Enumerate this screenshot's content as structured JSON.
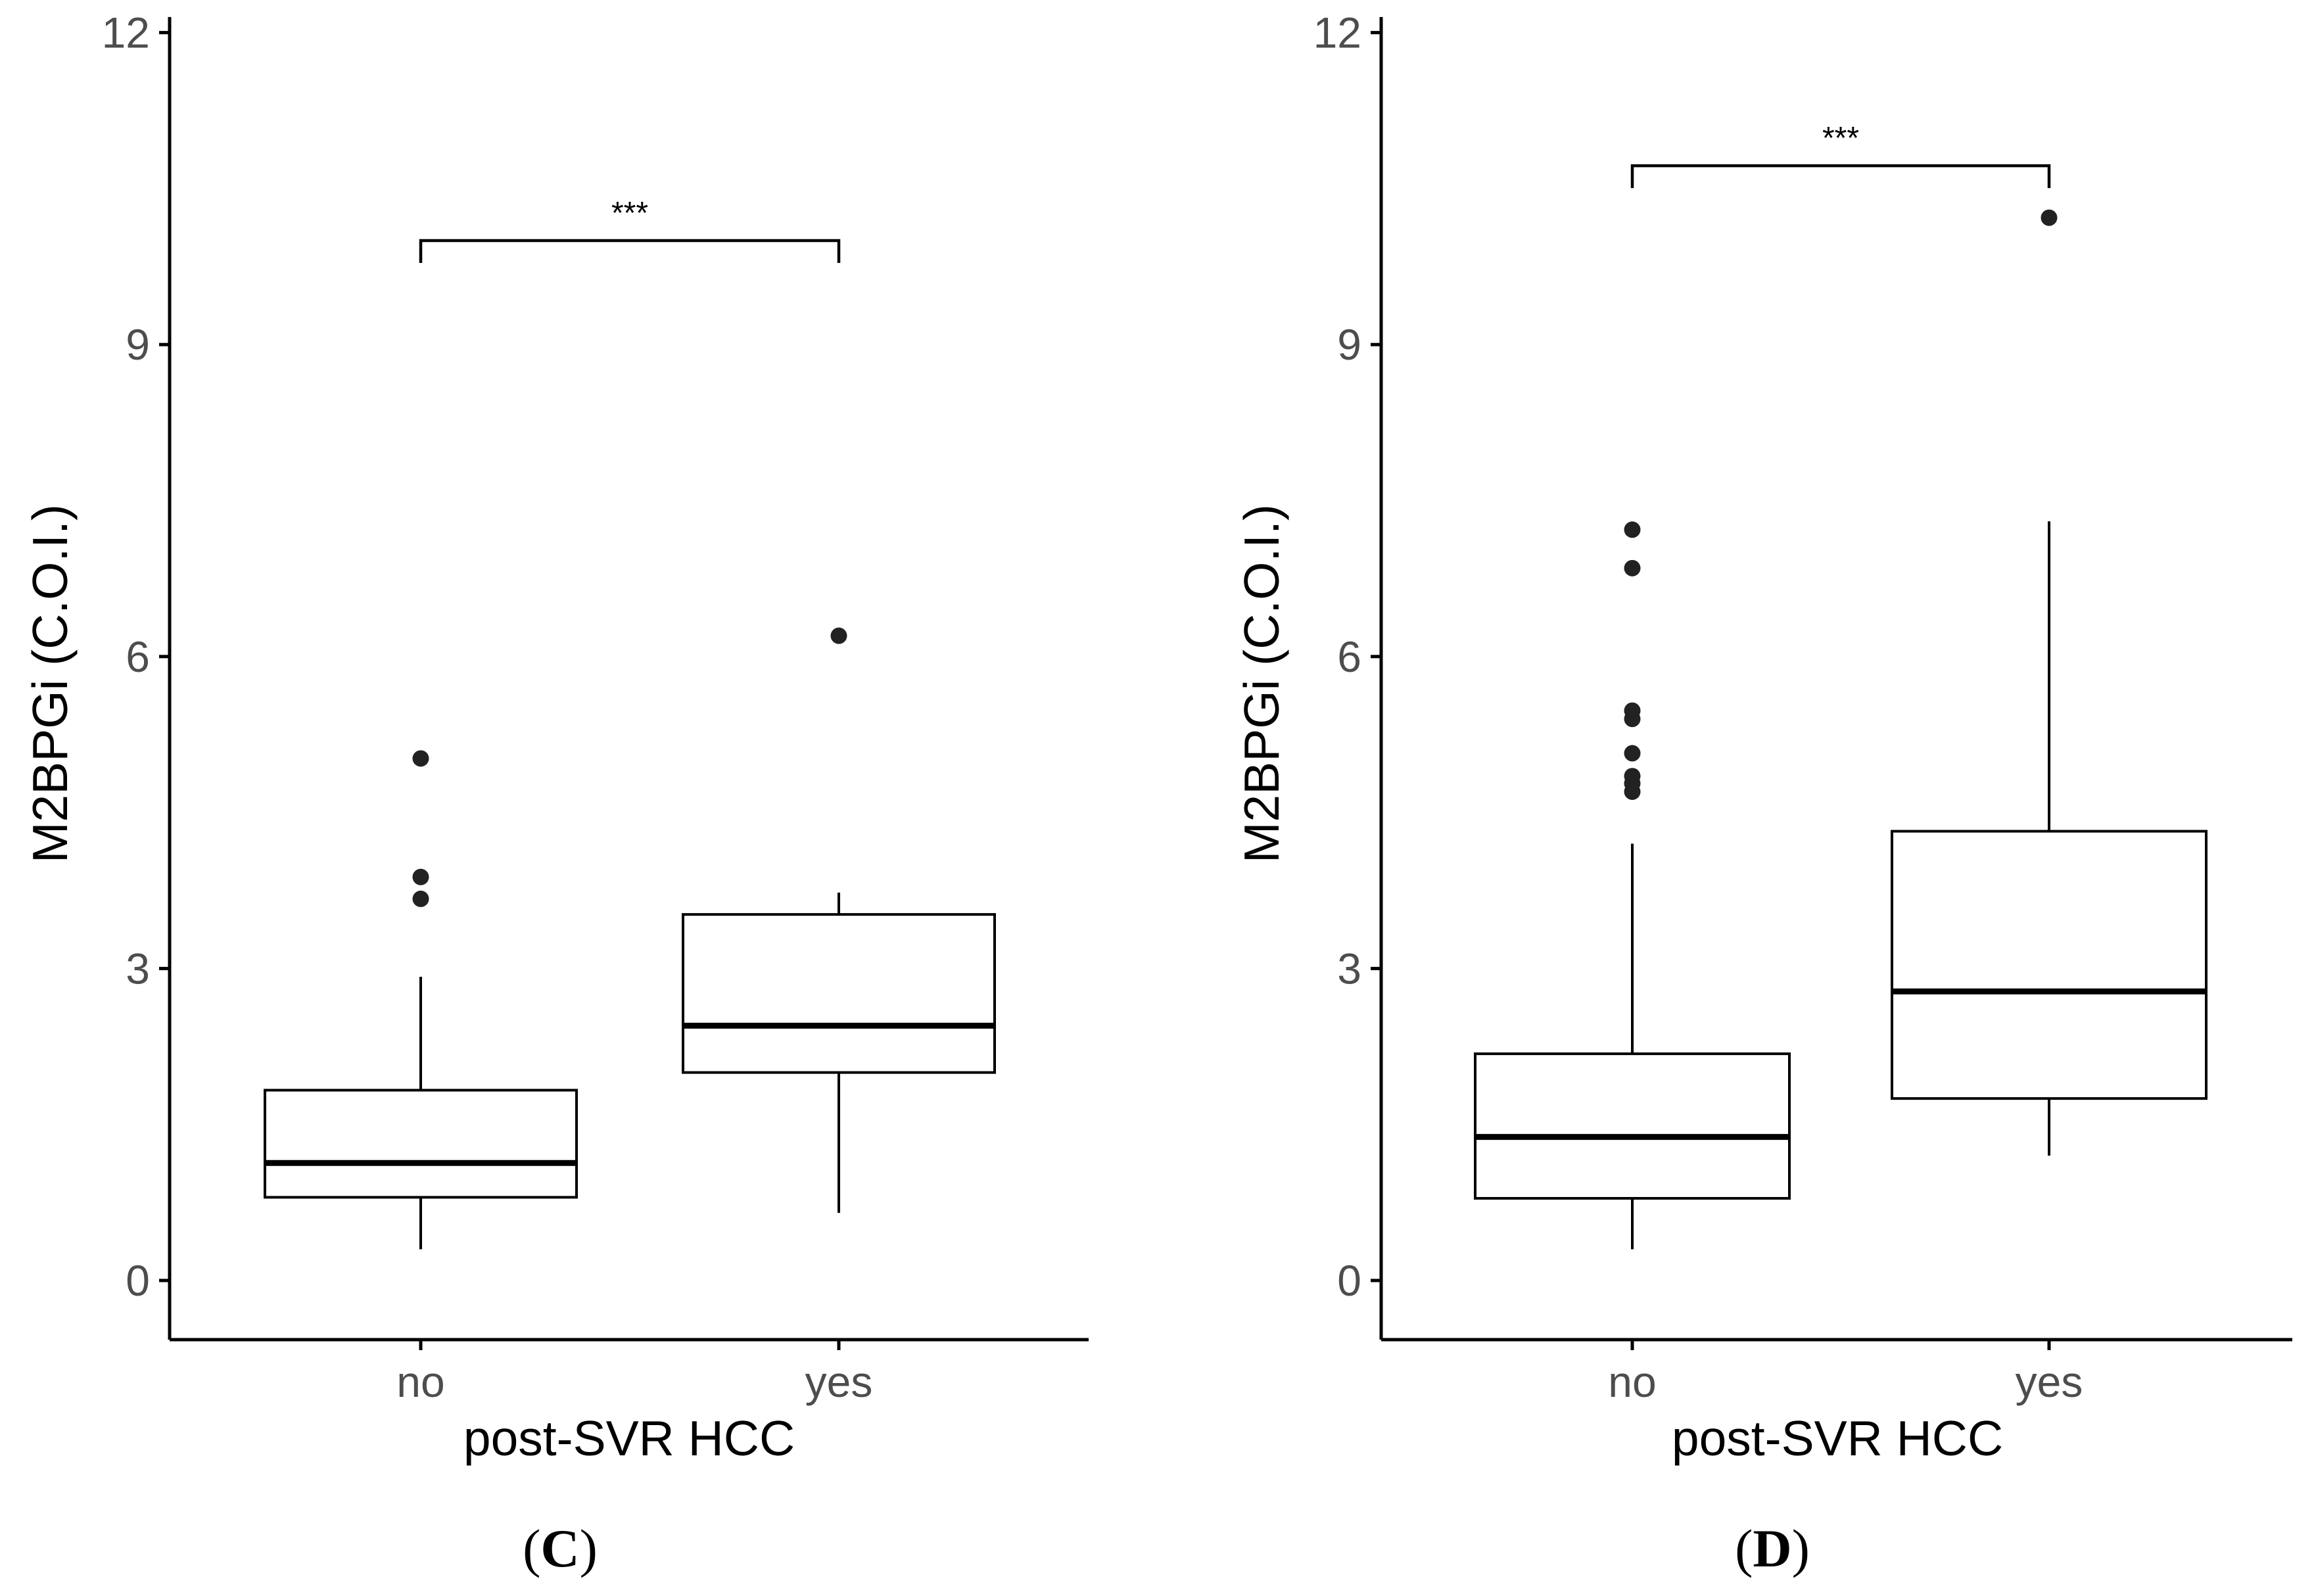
{
  "chart_data": [
    {
      "type": "boxplot",
      "panel_label": "C",
      "xlabel": "post-SVR HCC",
      "ylabel": "M2BPGi (C.O.I.)",
      "categories": [
        "no",
        "yes"
      ],
      "ylim": [
        -0.55,
        12.15
      ],
      "yticks": [
        0,
        3,
        6,
        9,
        12
      ],
      "ytick_labels": [
        "0",
        "3",
        "6",
        "9",
        "12"
      ],
      "boxes": [
        {
          "category": "no",
          "whisker_low": 0.3,
          "q1": 0.8,
          "median": 1.13,
          "q3": 1.83,
          "whisker_high": 2.92,
          "outliers": [
            3.67,
            3.88,
            5.02
          ]
        },
        {
          "category": "yes",
          "whisker_low": 0.65,
          "q1": 2.0,
          "median": 2.45,
          "q3": 3.52,
          "whisker_high": 3.73,
          "outliers": [
            6.2
          ]
        }
      ],
      "significance": {
        "label": "***",
        "from": "no",
        "to": "yes",
        "y": 10.0
      }
    },
    {
      "type": "boxplot",
      "panel_label": "D",
      "xlabel": "post-SVR HCC",
      "ylabel": "M2BPGi (C.O.I.)",
      "categories": [
        "no",
        "yes"
      ],
      "ylim": [
        -0.55,
        12.15
      ],
      "yticks": [
        0,
        3,
        6,
        9,
        12
      ],
      "ytick_labels": [
        "0",
        "3",
        "6",
        "9",
        "12"
      ],
      "boxes": [
        {
          "category": "no",
          "whisker_low": 0.3,
          "q1": 0.79,
          "median": 1.38,
          "q3": 2.18,
          "whisker_high": 4.2,
          "outliers": [
            4.7,
            4.78,
            4.85,
            5.07,
            5.4,
            5.48,
            6.85,
            7.22
          ]
        },
        {
          "category": "yes",
          "whisker_low": 1.2,
          "q1": 1.75,
          "median": 2.78,
          "q3": 4.32,
          "whisker_high": 7.3,
          "outliers": [
            10.22
          ]
        }
      ],
      "significance": {
        "label": "***",
        "from": "no",
        "to": "yes",
        "y": 10.72
      }
    }
  ],
  "style": {
    "axis_color": "#000000",
    "box_color": "#000000",
    "outlier_color": "#222222",
    "tick_label_color": "#4d4d4d"
  }
}
